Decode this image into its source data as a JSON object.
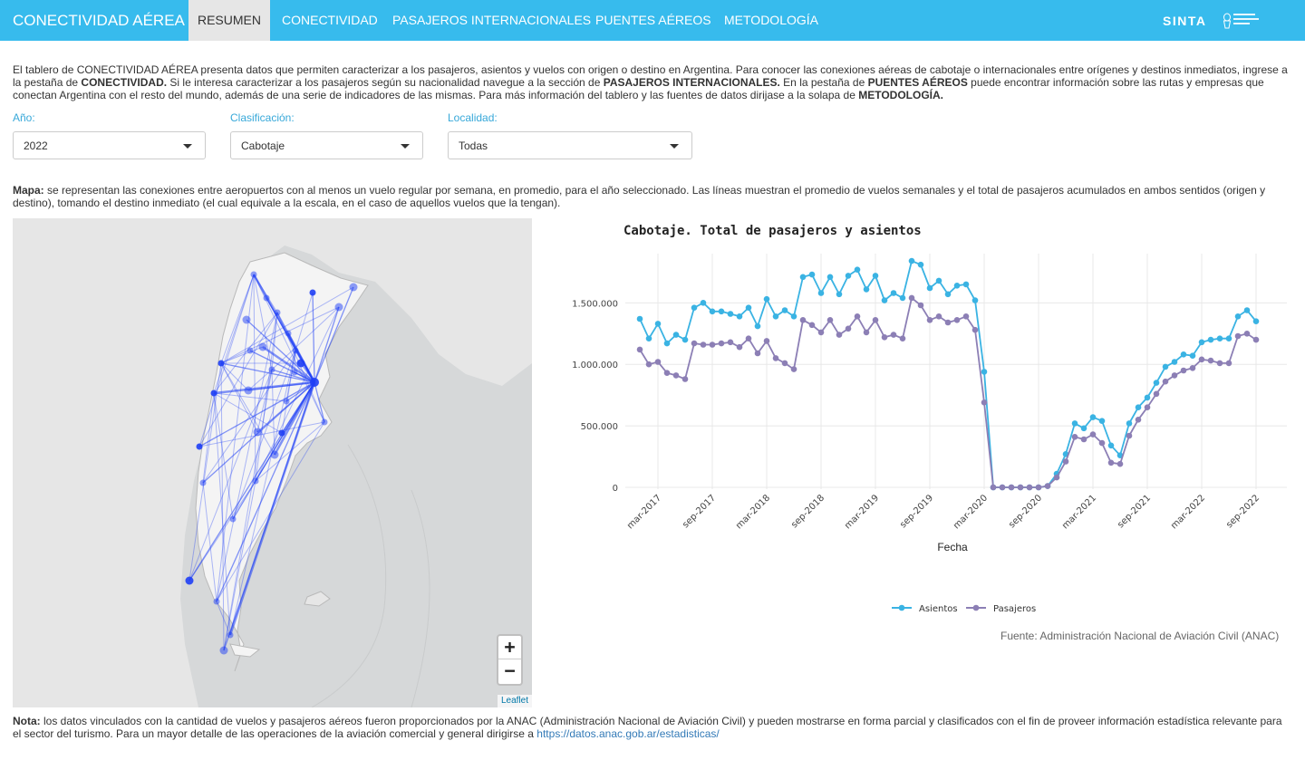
{
  "nav": {
    "brand": "CONECTIVIDAD AÉREA",
    "tabs": [
      "RESUMEN",
      "CONECTIVIDAD",
      "PASAJEROS INTERNACIONALES",
      "PUENTES AÉREOS",
      "METODOLOGÍA"
    ],
    "active_tab": "RESUMEN",
    "logo_text": "SINTA",
    "colors": {
      "bar": "#37bbed",
      "active_tab": "#e6e6e6"
    }
  },
  "intro": {
    "p1": "El tablero de CONECTIVIDAD AÉREA presenta datos que permiten caracterizar a los pasajeros, asientos y vuelos con origen o destino en Argentina. Para conocer las conexiones aéreas de cabotaje o internacionales entre orígenes y destinos inmediatos, ingrese a la pestaña de ",
    "b1": "CONECTIVIDAD.",
    "p2": " Si le interesa caracterizar a los pasajeros según su nacionalidad navegue a la sección de ",
    "b2": "PASAJEROS INTERNACIONALES.",
    "p3": " En la pestaña de ",
    "b3": "PUENTES AÉREOS",
    "p4": " puede encontrar información sobre las rutas y empresas que conectan Argentina con el resto del mundo, además de una serie de indicadores de las mismas. Para más información del tablero y las fuentes de datos dirijase a la solapa de ",
    "b4": "METODOLOGÍA."
  },
  "filters": {
    "anio": {
      "label": "Año:",
      "value": "2022"
    },
    "clasificacion": {
      "label": "Clasificación:",
      "value": "Cabotaje"
    },
    "localidad": {
      "label": "Localidad:",
      "value": "Todas"
    }
  },
  "map_desc": {
    "label": "Mapa:",
    "text": " se representan las conexiones entre aeropuertos con al menos un vuelo regular por semana, en promedio, para el año seleccionado. Las líneas muestran el promedio de vuelos semanales y el total de pasajeros acumulados en ambos sentidos (origen y destino), tomando el destino inmediato (el cual equivale a la escala, en el caso de aquellos vuelos que la tengan)."
  },
  "map": {
    "zoom_in": "+",
    "zoom_out": "−",
    "attribution": "Leaflet",
    "route_color": "#1f3ff5"
  },
  "chart_data": {
    "type": "line",
    "title": "Cabotaje. Total de pasajeros y asientos",
    "xlabel": "Fecha",
    "ylabel": "",
    "x_ticks": [
      "mar-2017",
      "sep-2017",
      "mar-2018",
      "sep-2018",
      "mar-2019",
      "sep-2019",
      "mar-2020",
      "sep-2020",
      "mar-2021",
      "sep-2021",
      "mar-2022",
      "sep-2022"
    ],
    "y_ticks": [
      "0",
      "500.000",
      "1.000.000",
      "1.500.000"
    ],
    "ylim": [
      0,
      1900000
    ],
    "x": [
      "2017-01",
      "2017-02",
      "2017-03",
      "2017-04",
      "2017-05",
      "2017-06",
      "2017-07",
      "2017-08",
      "2017-09",
      "2017-10",
      "2017-11",
      "2017-12",
      "2018-01",
      "2018-02",
      "2018-03",
      "2018-04",
      "2018-05",
      "2018-06",
      "2018-07",
      "2018-08",
      "2018-09",
      "2018-10",
      "2018-11",
      "2018-12",
      "2019-01",
      "2019-02",
      "2019-03",
      "2019-04",
      "2019-05",
      "2019-06",
      "2019-07",
      "2019-08",
      "2019-09",
      "2019-10",
      "2019-11",
      "2019-12",
      "2020-01",
      "2020-02",
      "2020-03",
      "2020-04",
      "2020-05",
      "2020-06",
      "2020-07",
      "2020-08",
      "2020-09",
      "2020-10",
      "2020-11",
      "2020-12",
      "2021-01",
      "2021-02",
      "2021-03",
      "2021-04",
      "2021-05",
      "2021-06",
      "2021-07",
      "2021-08",
      "2021-09",
      "2021-10",
      "2021-11",
      "2021-12",
      "2022-01",
      "2022-02",
      "2022-03",
      "2022-04",
      "2022-05",
      "2022-06",
      "2022-07",
      "2022-08",
      "2022-09"
    ],
    "series": [
      {
        "name": "Asientos",
        "color": "#3ab3e3",
        "values": [
          1370000,
          1210000,
          1330000,
          1170000,
          1240000,
          1200000,
          1460000,
          1500000,
          1430000,
          1430000,
          1410000,
          1390000,
          1460000,
          1310000,
          1530000,
          1390000,
          1440000,
          1390000,
          1710000,
          1730000,
          1580000,
          1710000,
          1570000,
          1720000,
          1770000,
          1610000,
          1720000,
          1520000,
          1580000,
          1540000,
          1840000,
          1810000,
          1620000,
          1680000,
          1570000,
          1640000,
          1650000,
          1520000,
          940000,
          0,
          0,
          0,
          0,
          0,
          0,
          10000,
          110000,
          270000,
          520000,
          480000,
          570000,
          540000,
          340000,
          260000,
          520000,
          650000,
          730000,
          850000,
          980000,
          1020000,
          1080000,
          1070000,
          1180000,
          1200000,
          1210000,
          1210000,
          1390000,
          1440000,
          1350000
        ]
      },
      {
        "name": "Pasajeros",
        "color": "#8c7fb5",
        "values": [
          1120000,
          1000000,
          1020000,
          930000,
          910000,
          880000,
          1170000,
          1160000,
          1160000,
          1170000,
          1180000,
          1140000,
          1210000,
          1090000,
          1190000,
          1050000,
          1010000,
          960000,
          1360000,
          1320000,
          1260000,
          1360000,
          1240000,
          1290000,
          1390000,
          1260000,
          1360000,
          1220000,
          1240000,
          1210000,
          1540000,
          1480000,
          1360000,
          1390000,
          1340000,
          1360000,
          1390000,
          1280000,
          690000,
          0,
          0,
          0,
          0,
          0,
          0,
          10000,
          80000,
          210000,
          410000,
          390000,
          430000,
          360000,
          200000,
          190000,
          420000,
          550000,
          650000,
          760000,
          860000,
          910000,
          950000,
          970000,
          1040000,
          1030000,
          1010000,
          1010000,
          1230000,
          1250000,
          1200000
        ]
      }
    ],
    "legend_position": "bottom",
    "grid": true
  },
  "source": "Fuente: Administración Nacional de Aviación Civil (ANAC)",
  "note": {
    "label": "Nota:",
    "text": " los datos vinculados con la cantidad de vuelos y pasajeros aéreos fueron proporcionados por la ANAC (Administración Nacional de Aviación Civil) y pueden mostrarse en forma parcial y clasificados con el fin de proveer información estadística relevante para el sector del turismo. Para un mayor detalle de las operaciones de la aviación comercial y general dirigirse a ",
    "link": "https://datos.anac.gob.ar/estadisticas/"
  }
}
